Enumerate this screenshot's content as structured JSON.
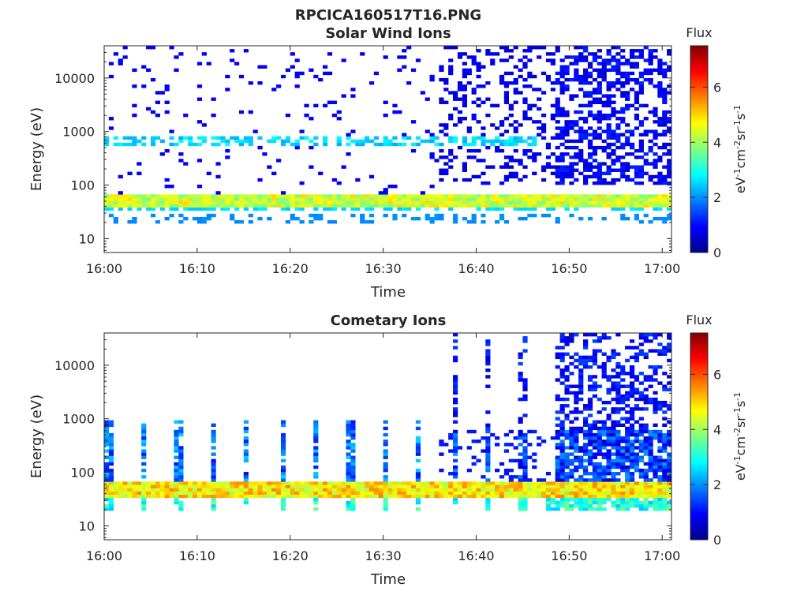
{
  "figure": {
    "title": "RPCICA160517T16.PNG"
  },
  "chart_data": [
    {
      "type": "heatmap",
      "title": "Solar Wind Ions",
      "xlabel": "Time",
      "ylabel": "Energy (eV)",
      "x_ticks": [
        "16:00",
        "16:10",
        "16:20",
        "16:30",
        "16:40",
        "16:50",
        "17:00"
      ],
      "xlim": [
        "16:00",
        "17:01"
      ],
      "y_scale": "log",
      "y_ticks": [
        10,
        100,
        1000,
        10000
      ],
      "y_tick_labels": [
        "10",
        "100",
        "1000",
        "10000"
      ],
      "ylim": [
        5.5,
        40000
      ],
      "colorbar": {
        "title": "Flux",
        "label": "eV-1cm-2sr-1s-1",
        "range": [
          0,
          7.5
        ],
        "ticks": [
          "0",
          "2",
          "4",
          "6"
        ],
        "colormap": "jet"
      },
      "features": [
        {
          "band": "energy 40-65 eV",
          "time": "16:00-17:01",
          "flux": 4.5
        },
        {
          "band": "energy 560-840 eV",
          "time": "16:00-16:47",
          "flux": 3.0
        },
        {
          "band": "energy 20-30 eV",
          "time": "16:00-17:01",
          "flux": 2.0
        },
        {
          "band": "energy 100-40000 eV",
          "time": "16:36-17:01",
          "flux": 1.0
        }
      ]
    },
    {
      "type": "heatmap",
      "title": "Cometary Ions",
      "xlabel": "Time",
      "ylabel": "Energy (eV)",
      "x_ticks": [
        "16:00",
        "16:10",
        "16:20",
        "16:30",
        "16:40",
        "16:50",
        "17:00"
      ],
      "xlim": [
        "16:00",
        "17:01"
      ],
      "y_scale": "log",
      "y_ticks": [
        10,
        100,
        1000,
        10000
      ],
      "y_tick_labels": [
        "10",
        "100",
        "1000",
        "10000"
      ],
      "ylim": [
        5.5,
        40000
      ],
      "colorbar": {
        "title": "Flux",
        "label": "eV-1cm-2sr-1s-1",
        "range": [
          0,
          7.5
        ],
        "ticks": [
          "0",
          "2",
          "4",
          "6"
        ],
        "colormap": "jet"
      },
      "features": [
        {
          "band": "energy 35-65 eV",
          "time": "16:00-17:01",
          "flux": 5.0
        },
        {
          "band": "energy 20-32 eV",
          "time": "16:00-17:01",
          "flux": 3.5
        },
        {
          "band": "energy 65-1000 eV",
          "time": "16:00-16:47",
          "flux": 1.8
        },
        {
          "band": "energy 65-40000 eV",
          "time": "16:36-17:01",
          "flux": 1.2
        }
      ]
    }
  ]
}
